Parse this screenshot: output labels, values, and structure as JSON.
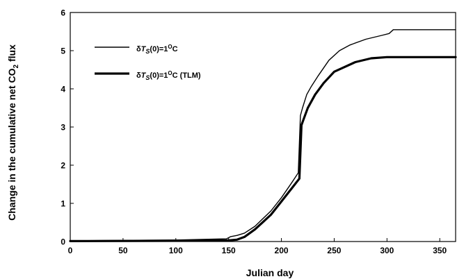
{
  "chart_data": {
    "type": "line",
    "xlabel": "Julian day",
    "ylabel": "Change in the cumulative net CO",
    "ylabel_sub": "2",
    "ylabel_suffix": " flux",
    "xlim": [
      0,
      365
    ],
    "ylim": [
      0,
      6
    ],
    "xticks": [
      0,
      50,
      100,
      150,
      200,
      250,
      300,
      350
    ],
    "yticks": [
      0,
      1,
      2,
      3,
      4,
      5,
      6
    ],
    "grid": false,
    "legend_position": "top-left",
    "series": [
      {
        "name": "δT_S(0)=1°C",
        "legend": {
          "prefix": "δ",
          "var": "T",
          "sub": "S",
          "mid": "(0)=1",
          "sup": "O",
          "suffix": "C"
        },
        "color": "#000000",
        "weight": "thin",
        "x": [
          0,
          100,
          148,
          152,
          158,
          165,
          175,
          190,
          200,
          210,
          216,
          218,
          220,
          224,
          228,
          235,
          245,
          255,
          265,
          280,
          295,
          302,
          306,
          330,
          365
        ],
        "y": [
          0.02,
          0.04,
          0.07,
          0.13,
          0.16,
          0.22,
          0.4,
          0.8,
          1.15,
          1.55,
          1.8,
          3.3,
          3.5,
          3.85,
          4.05,
          4.35,
          4.75,
          5.0,
          5.15,
          5.3,
          5.4,
          5.45,
          5.55,
          5.55,
          5.55
        ]
      },
      {
        "name": "δT_S(0)=1°C (TLM)",
        "legend": {
          "prefix": "δ",
          "var": "T",
          "sub": "S",
          "mid": "(0)=1",
          "sup": "O",
          "suffix": "C (TLM)"
        },
        "color": "#000000",
        "weight": "thick",
        "x": [
          0,
          100,
          150,
          158,
          165,
          175,
          190,
          200,
          210,
          217,
          219,
          221,
          225,
          232,
          240,
          250,
          258,
          270,
          285,
          300,
          330,
          365
        ],
        "y": [
          0.01,
          0.02,
          0.03,
          0.05,
          0.12,
          0.32,
          0.7,
          1.05,
          1.4,
          1.65,
          3.05,
          3.2,
          3.5,
          3.85,
          4.15,
          4.45,
          4.55,
          4.7,
          4.8,
          4.83,
          4.83,
          4.83
        ]
      }
    ]
  }
}
